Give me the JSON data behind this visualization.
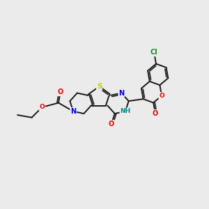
{
  "background_color": "#ebebeb",
  "bond_color": "#1a1a1a",
  "bond_width": 1.4,
  "dbo": 0.07,
  "atom_colors": {
    "S": "#cccc00",
    "N": "#0000ee",
    "O": "#ee0000",
    "Cl": "#228822",
    "NH": "#008888",
    "C": "#1a1a1a"
  },
  "fs": 7.0
}
